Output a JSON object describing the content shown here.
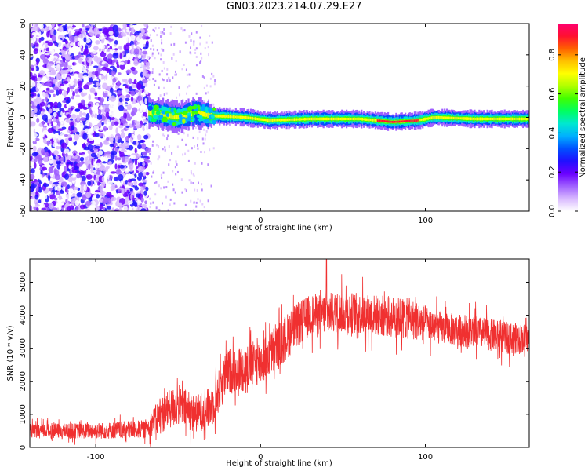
{
  "title": "GN03.2023.214.07.29.E27",
  "chart_data": [
    {
      "type": "heatmap",
      "xlabel": "Height of straight line (km)",
      "ylabel": "Frequency (Hz)",
      "xlim": [
        -140,
        163
      ],
      "ylim": [
        -60,
        60
      ],
      "xticks": [
        -100,
        0,
        100
      ],
      "yticks": [
        60,
        40,
        20,
        0,
        -20,
        -40,
        -60
      ],
      "colorbar": {
        "label": "Normalized spectral amplitude",
        "ticks": [
          "0.0",
          "0.2",
          "0.4",
          "0.6",
          "0.8"
        ],
        "colors": [
          "#ffffff",
          "#d8b8ff",
          "#a060ff",
          "#6a00ff",
          "#2010ff",
          "#0050ff",
          "#00b0ff",
          "#00e8d0",
          "#00ff60",
          "#40ff00",
          "#b0ff00",
          "#ffff00",
          "#ffc000",
          "#ff6000",
          "#ff1030",
          "#ff0070"
        ]
      },
      "regions": [
        {
          "x_start": -140,
          "x_end": -68,
          "description_level": 0.2,
          "freq_spread": [
            -60,
            60
          ]
        },
        {
          "x_start": -68,
          "x_end": -30,
          "description_level": 0.45,
          "freq_spread": [
            -8,
            10
          ]
        },
        {
          "x_start": -30,
          "x_end": 163,
          "description_level": 0.6,
          "freq_spread": [
            -4,
            4
          ]
        }
      ],
      "ridge": [
        {
          "x": -68,
          "y": 3
        },
        {
          "x": -60,
          "y": 2
        },
        {
          "x": -50,
          "y": 0
        },
        {
          "x": -40,
          "y": 3
        },
        {
          "x": -30,
          "y": 1
        },
        {
          "x": -10,
          "y": 0
        },
        {
          "x": 5,
          "y": -2
        },
        {
          "x": 30,
          "y": -1
        },
        {
          "x": 60,
          "y": -1
        },
        {
          "x": 80,
          "y": -3
        },
        {
          "x": 95,
          "y": -2
        },
        {
          "x": 105,
          "y": 0
        },
        {
          "x": 130,
          "y": -1
        },
        {
          "x": 163,
          "y": -1
        }
      ]
    },
    {
      "type": "line",
      "xlabel": "Height of straight line (km)",
      "ylabel": "SNR (10 * v/v)",
      "xlim": [
        -140,
        163
      ],
      "ylim": [
        0,
        5700
      ],
      "xticks": [
        -100,
        0,
        100
      ],
      "yticks": [
        0,
        1000,
        2000,
        3000,
        4000,
        5000
      ],
      "color": "#f03030",
      "series": [
        {
          "values_envelope": [
            {
              "x": -140,
              "mean": 500,
              "spread": 300
            },
            {
              "x": -100,
              "mean": 500,
              "spread": 350
            },
            {
              "x": -70,
              "mean": 550,
              "spread": 400
            },
            {
              "x": -60,
              "mean": 1000,
              "spread": 800
            },
            {
              "x": -50,
              "mean": 1300,
              "spread": 900
            },
            {
              "x": -40,
              "mean": 1000,
              "spread": 800
            },
            {
              "x": -30,
              "mean": 1200,
              "spread": 900
            },
            {
              "x": -20,
              "mean": 2300,
              "spread": 1000
            },
            {
              "x": -10,
              "mean": 2400,
              "spread": 1000
            },
            {
              "x": 0,
              "mean": 2600,
              "spread": 1000
            },
            {
              "x": 10,
              "mean": 3000,
              "spread": 1000
            },
            {
              "x": 20,
              "mean": 3600,
              "spread": 1000
            },
            {
              "x": 30,
              "mean": 4000,
              "spread": 900
            },
            {
              "x": 50,
              "mean": 4100,
              "spread": 900
            },
            {
              "x": 70,
              "mean": 4000,
              "spread": 900
            },
            {
              "x": 90,
              "mean": 3900,
              "spread": 900
            },
            {
              "x": 110,
              "mean": 3600,
              "spread": 700
            },
            {
              "x": 130,
              "mean": 3500,
              "spread": 700
            },
            {
              "x": 150,
              "mean": 3300,
              "spread": 700
            },
            {
              "x": 163,
              "mean": 3300,
              "spread": 600
            }
          ]
        }
      ],
      "peak": {
        "x": 40,
        "y": 5700
      }
    }
  ]
}
